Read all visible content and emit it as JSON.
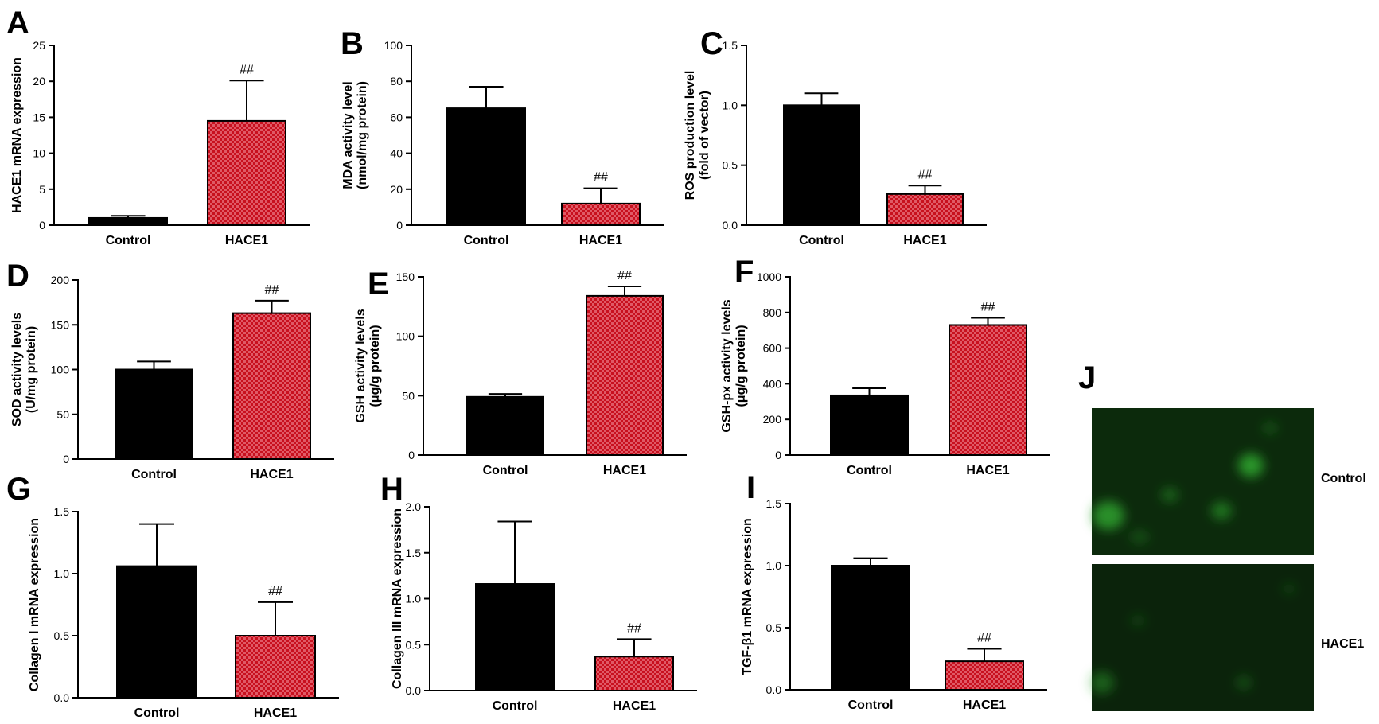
{
  "chart_data": [
    {
      "type": "bar",
      "panel": "A",
      "categories": [
        "Control",
        "HACE1"
      ],
      "values": [
        1.0,
        14.5
      ],
      "errors": [
        0.3,
        5.6
      ],
      "significance": [
        "",
        "##"
      ],
      "ylabel": [
        "HACE1 mRNA expression"
      ],
      "ylim": [
        0,
        25
      ],
      "yticks": [
        "0",
        "5",
        "10",
        "15",
        "20",
        "25"
      ]
    },
    {
      "type": "bar",
      "panel": "B",
      "categories": [
        "Control",
        "HACE1"
      ],
      "values": [
        65,
        12
      ],
      "errors": [
        12,
        8.5
      ],
      "significance": [
        "",
        "##"
      ],
      "ylabel": [
        "MDA activity level",
        "(nmol/mg protein)"
      ],
      "ylim": [
        0,
        100
      ],
      "yticks": [
        "0",
        "20",
        "40",
        "60",
        "80",
        "100"
      ]
    },
    {
      "type": "bar",
      "panel": "C",
      "categories": [
        "Control",
        "HACE1"
      ],
      "values": [
        1.0,
        0.26
      ],
      "errors": [
        0.1,
        0.07
      ],
      "significance": [
        "",
        "##"
      ],
      "ylabel": [
        "ROS production level",
        "(fold of vector)"
      ],
      "ylim": [
        0,
        1.5
      ],
      "yticks": [
        "0.0",
        "0.5",
        "1.0",
        "1.5"
      ]
    },
    {
      "type": "bar",
      "panel": "D",
      "categories": [
        "Control",
        "HACE1"
      ],
      "values": [
        100,
        163
      ],
      "errors": [
        9,
        14
      ],
      "significance": [
        "",
        "##"
      ],
      "ylabel": [
        "SOD activity levels",
        "(U/mg protein)"
      ],
      "ylim": [
        0,
        200
      ],
      "yticks": [
        "0",
        "50",
        "100",
        "150",
        "200"
      ]
    },
    {
      "type": "bar",
      "panel": "E",
      "categories": [
        "Control",
        "HACE1"
      ],
      "values": [
        49,
        134
      ],
      "errors": [
        2.5,
        8
      ],
      "significance": [
        "",
        "##"
      ],
      "ylabel": [
        "GSH activity levels",
        "(μg/g protein)"
      ],
      "ylim": [
        0,
        150
      ],
      "yticks": [
        "0",
        "50",
        "100",
        "150"
      ]
    },
    {
      "type": "bar",
      "panel": "F",
      "categories": [
        "Control",
        "HACE1"
      ],
      "values": [
        335,
        730
      ],
      "errors": [
        40,
        40
      ],
      "significance": [
        "",
        "##"
      ],
      "ylabel": [
        "GSH-px activity levels",
        "(μg/g protein)"
      ],
      "ylim": [
        0,
        1000
      ],
      "yticks": [
        "0",
        "200",
        "400",
        "600",
        "800",
        "1000"
      ]
    },
    {
      "type": "bar",
      "panel": "G",
      "categories": [
        "Control",
        "HACE1"
      ],
      "values": [
        1.06,
        0.5
      ],
      "errors": [
        0.34,
        0.27
      ],
      "significance": [
        "",
        "##"
      ],
      "ylabel": [
        "Collagen I mRNA expression"
      ],
      "ylim": [
        0,
        1.5
      ],
      "yticks": [
        "0.0",
        "0.5",
        "1.0",
        "1.5"
      ]
    },
    {
      "type": "bar",
      "panel": "H",
      "categories": [
        "Control",
        "HACE1"
      ],
      "values": [
        1.16,
        0.37
      ],
      "errors": [
        0.68,
        0.19
      ],
      "significance": [
        "",
        "##"
      ],
      "ylabel": [
        "Collagen III mRNA expression"
      ],
      "ylim": [
        0,
        2.0
      ],
      "yticks": [
        "0.0",
        "0.5",
        "1.0",
        "1.5",
        "2.0"
      ]
    },
    {
      "type": "bar",
      "panel": "I",
      "categories": [
        "Control",
        "HACE1"
      ],
      "values": [
        1.0,
        0.23
      ],
      "errors": [
        0.06,
        0.1
      ],
      "significance": [
        "",
        "##"
      ],
      "ylabel": [
        "TGF-β1 mRNA expression"
      ],
      "ylim": [
        0,
        1.5
      ],
      "yticks": [
        "0.0",
        "0.5",
        "1.0",
        "1.5"
      ]
    }
  ],
  "image_panel": {
    "panel": "J",
    "rows": [
      {
        "label": "Control"
      },
      {
        "label": "HACE1"
      }
    ]
  },
  "colors": {
    "control_bar": "#000000",
    "hace1_bar": "#e05a66",
    "hace1_check": "#c8101e",
    "micrograph_bg": "#0c2a0c",
    "micrograph_spot": "#2fa82f"
  }
}
